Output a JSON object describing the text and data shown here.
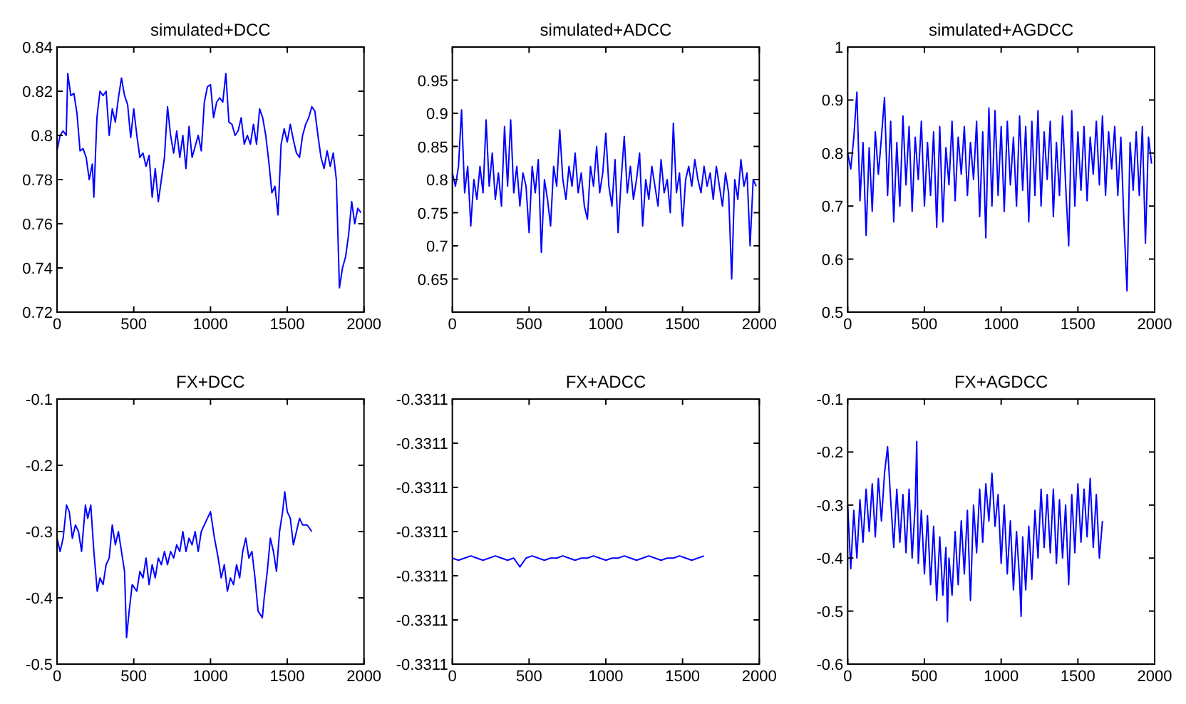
{
  "chart_data": [
    {
      "type": "line",
      "title": "simulated+DCC",
      "xlim": [
        0,
        2000
      ],
      "xticks": [
        0,
        500,
        1000,
        1500,
        2000
      ],
      "ylim": [
        0.72,
        0.84
      ],
      "yticks": [
        0.72,
        0.74,
        0.76,
        0.78,
        0.8,
        0.82,
        0.84
      ],
      "series": [
        {
          "color": "#0000ff",
          "x": [
            0,
            20,
            40,
            60,
            70,
            90,
            110,
            130,
            150,
            170,
            190,
            210,
            230,
            240,
            260,
            280,
            300,
            320,
            340,
            360,
            380,
            400,
            420,
            440,
            460,
            480,
            500,
            520,
            540,
            560,
            580,
            600,
            620,
            640,
            660,
            680,
            700,
            720,
            740,
            760,
            780,
            800,
            820,
            840,
            860,
            880,
            900,
            920,
            940,
            960,
            980,
            1000,
            1020,
            1040,
            1060,
            1080,
            1100,
            1120,
            1140,
            1160,
            1180,
            1200,
            1220,
            1240,
            1260,
            1280,
            1300,
            1320,
            1340,
            1360,
            1380,
            1400,
            1420,
            1440,
            1460,
            1480,
            1500,
            1520,
            1540,
            1560,
            1580,
            1600,
            1620,
            1640,
            1660,
            1680,
            1700,
            1720,
            1740,
            1760,
            1780,
            1800,
            1820,
            1840,
            1860,
            1880,
            1900,
            1920,
            1940,
            1960,
            1980
          ],
          "values": [
            0.793,
            0.8,
            0.802,
            0.8,
            0.828,
            0.818,
            0.819,
            0.81,
            0.793,
            0.794,
            0.79,
            0.78,
            0.787,
            0.772,
            0.808,
            0.82,
            0.818,
            0.82,
            0.8,
            0.812,
            0.806,
            0.817,
            0.826,
            0.818,
            0.814,
            0.799,
            0.812,
            0.8,
            0.79,
            0.792,
            0.786,
            0.791,
            0.772,
            0.785,
            0.77,
            0.78,
            0.79,
            0.813,
            0.8,
            0.792,
            0.802,
            0.79,
            0.8,
            0.785,
            0.804,
            0.79,
            0.795,
            0.8,
            0.793,
            0.815,
            0.822,
            0.823,
            0.808,
            0.815,
            0.817,
            0.815,
            0.828,
            0.806,
            0.805,
            0.8,
            0.802,
            0.808,
            0.796,
            0.8,
            0.796,
            0.805,
            0.796,
            0.812,
            0.808,
            0.8,
            0.788,
            0.774,
            0.777,
            0.764,
            0.796,
            0.803,
            0.797,
            0.805,
            0.798,
            0.792,
            0.79,
            0.8,
            0.805,
            0.808,
            0.813,
            0.811,
            0.8,
            0.79,
            0.785,
            0.793,
            0.786,
            0.792,
            0.78,
            0.731,
            0.74,
            0.745,
            0.755,
            0.77,
            0.76,
            0.767,
            0.765
          ]
        }
      ]
    },
    {
      "type": "line",
      "title": "simulated+ADCC",
      "xlim": [
        0,
        2000
      ],
      "xticks": [
        0,
        500,
        1000,
        1500,
        2000
      ],
      "ylim": [
        0.6,
        1
      ],
      "yticks": [
        0.65,
        0.7,
        0.75,
        0.8,
        0.85,
        0.9,
        0.95
      ],
      "series": [
        {
          "color": "#0000ff",
          "x": [
            0,
            20,
            40,
            60,
            80,
            100,
            120,
            140,
            160,
            180,
            200,
            220,
            240,
            260,
            280,
            300,
            320,
            340,
            360,
            380,
            400,
            420,
            440,
            460,
            480,
            500,
            520,
            540,
            560,
            580,
            600,
            620,
            640,
            660,
            680,
            700,
            720,
            740,
            760,
            780,
            800,
            820,
            840,
            860,
            880,
            900,
            920,
            940,
            960,
            980,
            1000,
            1020,
            1040,
            1060,
            1080,
            1100,
            1120,
            1140,
            1160,
            1180,
            1200,
            1220,
            1240,
            1260,
            1280,
            1300,
            1320,
            1340,
            1360,
            1380,
            1400,
            1420,
            1440,
            1460,
            1480,
            1500,
            1520,
            1540,
            1560,
            1580,
            1600,
            1620,
            1640,
            1660,
            1680,
            1700,
            1720,
            1740,
            1760,
            1780,
            1800,
            1820,
            1840,
            1860,
            1880,
            1900,
            1920,
            1940,
            1960,
            1980
          ],
          "values": [
            0.81,
            0.79,
            0.82,
            0.905,
            0.78,
            0.82,
            0.73,
            0.8,
            0.77,
            0.82,
            0.78,
            0.89,
            0.79,
            0.84,
            0.77,
            0.81,
            0.76,
            0.88,
            0.79,
            0.89,
            0.78,
            0.82,
            0.76,
            0.81,
            0.79,
            0.72,
            0.82,
            0.78,
            0.83,
            0.69,
            0.8,
            0.77,
            0.73,
            0.82,
            0.79,
            0.875,
            0.8,
            0.77,
            0.82,
            0.79,
            0.84,
            0.78,
            0.81,
            0.76,
            0.74,
            0.82,
            0.79,
            0.85,
            0.78,
            0.81,
            0.87,
            0.79,
            0.76,
            0.83,
            0.72,
            0.8,
            0.865,
            0.78,
            0.82,
            0.77,
            0.8,
            0.84,
            0.73,
            0.8,
            0.77,
            0.82,
            0.79,
            0.76,
            0.83,
            0.78,
            0.8,
            0.75,
            0.885,
            0.78,
            0.81,
            0.73,
            0.8,
            0.82,
            0.79,
            0.83,
            0.8,
            0.78,
            0.82,
            0.79,
            0.81,
            0.77,
            0.82,
            0.79,
            0.76,
            0.81,
            0.78,
            0.65,
            0.8,
            0.77,
            0.83,
            0.79,
            0.81,
            0.7,
            0.8,
            0.79
          ]
        }
      ]
    },
    {
      "type": "line",
      "title": "simulated+AGDCC",
      "xlim": [
        0,
        2000
      ],
      "xticks": [
        0,
        500,
        1000,
        1500,
        2000
      ],
      "ylim": [
        0.5,
        1
      ],
      "yticks": [
        0.5,
        0.6,
        0.7,
        0.8,
        0.9,
        1
      ],
      "series": [
        {
          "color": "#0000ff",
          "x": [
            0,
            20,
            40,
            60,
            80,
            100,
            120,
            140,
            160,
            180,
            200,
            220,
            240,
            260,
            280,
            300,
            320,
            340,
            360,
            380,
            400,
            420,
            440,
            460,
            480,
            500,
            520,
            540,
            560,
            580,
            600,
            620,
            640,
            660,
            680,
            700,
            720,
            740,
            760,
            780,
            800,
            820,
            840,
            860,
            880,
            900,
            920,
            940,
            960,
            980,
            1000,
            1020,
            1040,
            1060,
            1080,
            1100,
            1120,
            1140,
            1160,
            1180,
            1200,
            1220,
            1240,
            1260,
            1280,
            1300,
            1320,
            1340,
            1360,
            1380,
            1400,
            1420,
            1440,
            1460,
            1480,
            1500,
            1520,
            1540,
            1560,
            1580,
            1600,
            1620,
            1640,
            1660,
            1680,
            1700,
            1720,
            1740,
            1760,
            1780,
            1800,
            1820,
            1840,
            1860,
            1880,
            1900,
            1920,
            1940,
            1960,
            1980
          ],
          "values": [
            0.8,
            0.77,
            0.83,
            0.915,
            0.71,
            0.82,
            0.645,
            0.81,
            0.69,
            0.84,
            0.76,
            0.83,
            0.905,
            0.72,
            0.86,
            0.67,
            0.82,
            0.7,
            0.87,
            0.74,
            0.85,
            0.69,
            0.83,
            0.75,
            0.86,
            0.7,
            0.82,
            0.72,
            0.84,
            0.66,
            0.85,
            0.67,
            0.81,
            0.74,
            0.86,
            0.71,
            0.83,
            0.76,
            0.85,
            0.72,
            0.82,
            0.75,
            0.86,
            0.68,
            0.84,
            0.64,
            0.885,
            0.7,
            0.88,
            0.72,
            0.85,
            0.69,
            0.86,
            0.74,
            0.83,
            0.7,
            0.87,
            0.73,
            0.85,
            0.67,
            0.86,
            0.72,
            0.88,
            0.7,
            0.84,
            0.75,
            0.86,
            0.68,
            0.82,
            0.72,
            0.87,
            0.74,
            0.625,
            0.88,
            0.7,
            0.84,
            0.73,
            0.85,
            0.71,
            0.83,
            0.76,
            0.86,
            0.74,
            0.87,
            0.72,
            0.84,
            0.77,
            0.85,
            0.72,
            0.83,
            0.67,
            0.54,
            0.82,
            0.73,
            0.84,
            0.72,
            0.85,
            0.63,
            0.83,
            0.78
          ]
        }
      ]
    },
    {
      "type": "line",
      "title": "FX+DCC",
      "xlim": [
        0,
        2000
      ],
      "xticks": [
        0,
        500,
        1000,
        1500,
        2000
      ],
      "ylim": [
        -0.5,
        -0.1
      ],
      "yticks": [
        -0.5,
        -0.4,
        -0.3,
        -0.2,
        -0.1
      ],
      "series": [
        {
          "color": "#0000ff",
          "x": [
            0,
            20,
            40,
            62,
            80,
            100,
            120,
            140,
            160,
            185,
            200,
            220,
            240,
            262,
            280,
            300,
            320,
            340,
            360,
            380,
            400,
            420,
            440,
            453,
            470,
            490,
            520,
            540,
            560,
            580,
            600,
            620,
            640,
            660,
            680,
            700,
            720,
            740,
            760,
            780,
            800,
            820,
            840,
            860,
            880,
            900,
            920,
            940,
            960,
            980,
            1000,
            1026,
            1050,
            1070,
            1090,
            1110,
            1130,
            1150,
            1170,
            1190,
            1210,
            1230,
            1250,
            1270,
            1290,
            1310,
            1338,
            1350,
            1370,
            1390,
            1410,
            1430,
            1450,
            1470,
            1484,
            1500,
            1520,
            1540,
            1560,
            1580,
            1600,
            1630,
            1660
          ],
          "values": [
            -0.31,
            -0.33,
            -0.31,
            -0.26,
            -0.27,
            -0.31,
            -0.29,
            -0.3,
            -0.33,
            -0.26,
            -0.28,
            -0.26,
            -0.33,
            -0.39,
            -0.37,
            -0.38,
            -0.35,
            -0.34,
            -0.29,
            -0.32,
            -0.3,
            -0.33,
            -0.36,
            -0.46,
            -0.42,
            -0.38,
            -0.39,
            -0.36,
            -0.37,
            -0.34,
            -0.38,
            -0.35,
            -0.37,
            -0.34,
            -0.35,
            -0.33,
            -0.35,
            -0.33,
            -0.34,
            -0.32,
            -0.33,
            -0.3,
            -0.33,
            -0.31,
            -0.32,
            -0.3,
            -0.33,
            -0.3,
            -0.29,
            -0.28,
            -0.27,
            -0.31,
            -0.34,
            -0.37,
            -0.35,
            -0.39,
            -0.37,
            -0.38,
            -0.35,
            -0.37,
            -0.33,
            -0.31,
            -0.34,
            -0.33,
            -0.37,
            -0.42,
            -0.43,
            -0.4,
            -0.36,
            -0.31,
            -0.33,
            -0.36,
            -0.3,
            -0.27,
            -0.24,
            -0.27,
            -0.28,
            -0.32,
            -0.3,
            -0.28,
            -0.29,
            -0.29,
            -0.3
          ]
        }
      ]
    },
    {
      "type": "line",
      "title": "FX+ADCC",
      "xlim": [
        0,
        2000
      ],
      "xticks": [
        0,
        500,
        1000,
        1500,
        2000
      ],
      "ylim": [
        -0.33113,
        -0.33107
      ],
      "yticks": [
        {
          "value": -0.33113,
          "label": "-0.3311"
        },
        {
          "value": -0.33112,
          "label": "-0.3311"
        },
        {
          "value": -0.33111,
          "label": "-0.3311"
        },
        {
          "value": -0.3311,
          "label": "-0.3311"
        },
        {
          "value": -0.33109,
          "label": "-0.3311"
        },
        {
          "value": -0.33108,
          "label": "-0.3311"
        },
        {
          "value": -0.33107,
          "label": "-0.3311"
        }
      ],
      "series": [
        {
          "color": "#0000ff",
          "x": [
            0,
            40,
            80,
            120,
            160,
            200,
            240,
            280,
            320,
            360,
            400,
            440,
            480,
            520,
            560,
            600,
            640,
            680,
            720,
            760,
            800,
            840,
            880,
            920,
            960,
            1000,
            1040,
            1080,
            1120,
            1160,
            1200,
            1240,
            1280,
            1320,
            1360,
            1400,
            1440,
            1480,
            1520,
            1560,
            1600,
            1640
          ],
          "values": [
            -0.331106,
            -0.3311065,
            -0.331106,
            -0.3311055,
            -0.331106,
            -0.3311065,
            -0.331106,
            -0.3311055,
            -0.331106,
            -0.3311065,
            -0.331106,
            -0.331108,
            -0.331106,
            -0.3311055,
            -0.331106,
            -0.3311065,
            -0.331106,
            -0.331106,
            -0.3311055,
            -0.331106,
            -0.3311065,
            -0.331106,
            -0.331106,
            -0.3311055,
            -0.331106,
            -0.3311065,
            -0.331106,
            -0.331106,
            -0.3311055,
            -0.331106,
            -0.3311065,
            -0.331106,
            -0.3311055,
            -0.331106,
            -0.3311065,
            -0.331106,
            -0.331106,
            -0.3311055,
            -0.331106,
            -0.3311065,
            -0.331106,
            -0.3311055
          ]
        }
      ]
    },
    {
      "type": "line",
      "title": "FX+AGDCC",
      "xlim": [
        0,
        2000
      ],
      "xticks": [
        0,
        500,
        1000,
        1500,
        2000
      ],
      "ylim": [
        -0.6,
        -0.1
      ],
      "yticks": [
        -0.6,
        -0.5,
        -0.4,
        -0.3,
        -0.2,
        -0.1
      ],
      "series": [
        {
          "color": "#0000ff",
          "x": [
            0,
            20,
            40,
            60,
            80,
            100,
            120,
            140,
            160,
            180,
            200,
            220,
            240,
            260,
            280,
            300,
            320,
            340,
            360,
            380,
            400,
            420,
            440,
            450,
            460,
            480,
            500,
            520,
            540,
            560,
            580,
            600,
            620,
            640,
            650,
            660,
            680,
            700,
            720,
            740,
            760,
            780,
            800,
            820,
            840,
            860,
            880,
            900,
            920,
            940,
            960,
            980,
            1000,
            1020,
            1040,
            1060,
            1080,
            1100,
            1120,
            1130,
            1140,
            1160,
            1180,
            1200,
            1220,
            1240,
            1260,
            1280,
            1300,
            1320,
            1340,
            1360,
            1380,
            1400,
            1420,
            1440,
            1460,
            1480,
            1500,
            1520,
            1540,
            1560,
            1580,
            1600,
            1620,
            1640,
            1660
          ],
          "values": [
            -0.3,
            -0.42,
            -0.31,
            -0.4,
            -0.29,
            -0.37,
            -0.27,
            -0.35,
            -0.26,
            -0.36,
            -0.25,
            -0.33,
            -0.24,
            -0.19,
            -0.29,
            -0.38,
            -0.27,
            -0.37,
            -0.28,
            -0.39,
            -0.27,
            -0.4,
            -0.3,
            -0.18,
            -0.41,
            -0.31,
            -0.43,
            -0.32,
            -0.45,
            -0.34,
            -0.48,
            -0.36,
            -0.47,
            -0.38,
            -0.52,
            -0.4,
            -0.47,
            -0.35,
            -0.45,
            -0.33,
            -0.43,
            -0.31,
            -0.48,
            -0.3,
            -0.39,
            -0.27,
            -0.37,
            -0.26,
            -0.33,
            -0.24,
            -0.34,
            -0.28,
            -0.41,
            -0.3,
            -0.43,
            -0.33,
            -0.46,
            -0.35,
            -0.44,
            -0.51,
            -0.36,
            -0.46,
            -0.34,
            -0.44,
            -0.31,
            -0.4,
            -0.27,
            -0.38,
            -0.28,
            -0.39,
            -0.27,
            -0.41,
            -0.29,
            -0.4,
            -0.3,
            -0.45,
            -0.28,
            -0.39,
            -0.26,
            -0.37,
            -0.27,
            -0.36,
            -0.25,
            -0.38,
            -0.28,
            -0.4,
            -0.33
          ]
        }
      ]
    }
  ]
}
